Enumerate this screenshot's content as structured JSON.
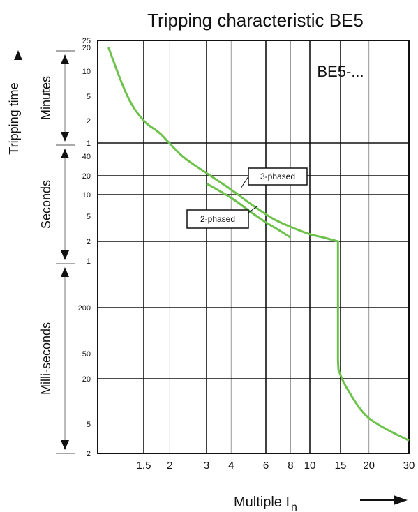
{
  "chart_data": {
    "type": "line",
    "title": "Tripping characteristic BE5",
    "ylabel": "Tripping time",
    "xlabel": "Multiple I",
    "xlabel_subscript": "n",
    "model_label": "BE5-...",
    "x_scale": "log",
    "y_scale": "log",
    "xlim": [
      1.0,
      30
    ],
    "ylim_seconds": [
      0.002,
      1500
    ],
    "grid": true,
    "x_ticks": [
      {
        "value": 1.5,
        "label": "1.5"
      },
      {
        "value": 2,
        "label": "2"
      },
      {
        "value": 3,
        "label": "3"
      },
      {
        "value": 4,
        "label": "4"
      },
      {
        "value": 6,
        "label": "6"
      },
      {
        "value": 8,
        "label": "8"
      },
      {
        "value": 10,
        "label": "10"
      },
      {
        "value": 15,
        "label": "15"
      },
      {
        "value": 20,
        "label": "20"
      },
      {
        "value": 30,
        "label": "30"
      }
    ],
    "y_ticks": [
      {
        "seconds": 1500,
        "label": "25"
      },
      {
        "seconds": 1200,
        "label": "20"
      },
      {
        "seconds": 600,
        "label": "10"
      },
      {
        "seconds": 300,
        "label": "5"
      },
      {
        "seconds": 120,
        "label": "2"
      },
      {
        "seconds": 60,
        "label": "1"
      },
      {
        "seconds": 40,
        "label": "40"
      },
      {
        "seconds": 20,
        "label": "20"
      },
      {
        "seconds": 10,
        "label": "10"
      },
      {
        "seconds": 5,
        "label": "5"
      },
      {
        "seconds": 2,
        "label": "2"
      },
      {
        "seconds": 1,
        "label": "1"
      },
      {
        "seconds": 0.2,
        "label": "200"
      },
      {
        "seconds": 0.05,
        "label": "50"
      },
      {
        "seconds": 0.02,
        "label": "20"
      },
      {
        "seconds": 0.005,
        "label": "5"
      },
      {
        "seconds": 0.002,
        "label": "2"
      }
    ],
    "y_bands": [
      {
        "label": "Minutes",
        "from_seconds": 1500,
        "to_seconds": 60
      },
      {
        "label": "Seconds",
        "from_seconds": 60,
        "to_seconds": 1
      },
      {
        "label": "Milli-seconds",
        "from_seconds": 1,
        "to_seconds": 0.002
      }
    ],
    "series": [
      {
        "name": "3-phased",
        "color": "#6cc24a",
        "x": [
          1.1,
          1.3,
          1.5,
          1.8,
          2.3,
          3.0,
          4.0,
          5.0,
          6.5,
          8.0,
          10.0,
          12.0,
          14.5,
          14.5,
          14.6,
          16.0,
          20.0,
          30.0
        ],
        "y": [
          1200,
          300,
          120,
          80,
          40,
          22,
          12,
          7.5,
          4.6,
          3.4,
          2.6,
          2.3,
          2.0,
          0.04,
          0.028,
          0.015,
          0.006,
          0.003
        ]
      },
      {
        "name": "2-phased",
        "color": "#6cc24a",
        "x": [
          3.0,
          4.0,
          5.0,
          6.0,
          7.0,
          8.0
        ],
        "y": [
          15,
          9,
          5.8,
          4.0,
          3.0,
          2.3
        ]
      }
    ],
    "annotations": [
      {
        "text": "3-phased",
        "series": "3-phased"
      },
      {
        "text": "2-phased",
        "series": "2-phased"
      }
    ]
  }
}
